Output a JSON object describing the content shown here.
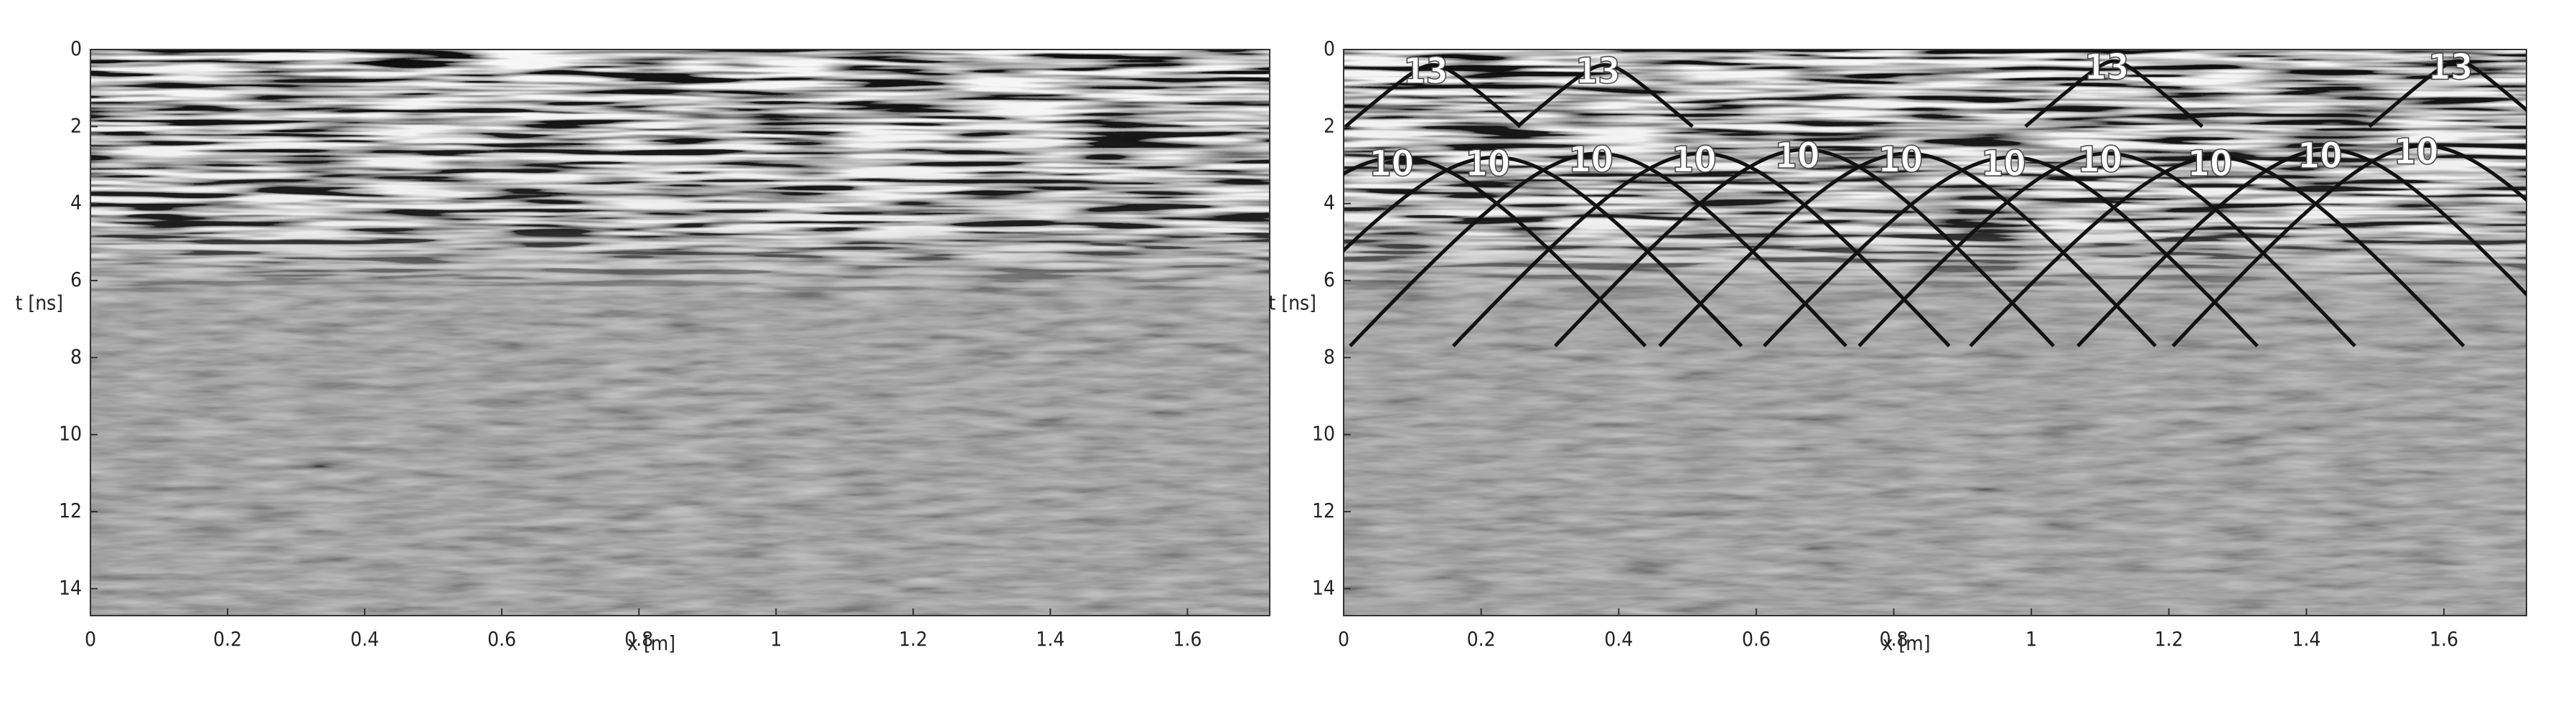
{
  "chart_data": [
    {
      "type": "radargram",
      "xlabel": "x [m]",
      "ylabel": "t [ns]",
      "xlim": [
        0,
        1.72
      ],
      "xticks": [
        0,
        0.2,
        0.4,
        0.6,
        0.8,
        1,
        1.2,
        1.4,
        1.6
      ],
      "ylim": [
        0,
        14.7
      ],
      "yticks": [
        0,
        2,
        4,
        6,
        8,
        10,
        12,
        14
      ],
      "invert_y": true
    },
    {
      "type": "radargram",
      "xlabel": "x [m]",
      "ylabel": "t [ns]",
      "xlim": [
        0,
        1.72
      ],
      "xticks": [
        0,
        0.2,
        0.4,
        0.6,
        0.8,
        1,
        1.2,
        1.4,
        1.6
      ],
      "ylim": [
        0,
        14.7
      ],
      "yticks": [
        0,
        2,
        4,
        6,
        8,
        10,
        12,
        14
      ],
      "invert_y": true,
      "hyperbolas": [
        {
          "x0": 0.13,
          "t0": 0.4,
          "velocity": 13,
          "t_end": 2.0
        },
        {
          "x0": 0.38,
          "t0": 0.4,
          "velocity": 13,
          "t_end": 2.0
        },
        {
          "x0": 1.12,
          "t0": 0.3,
          "velocity": 13,
          "t_end": 2.0
        },
        {
          "x0": 1.62,
          "t0": 0.3,
          "velocity": 13,
          "t_end": 2.0
        },
        {
          "x0": 0.08,
          "t0": 2.8,
          "velocity": 10,
          "t_end": 7.7
        },
        {
          "x0": 0.22,
          "t0": 2.8,
          "velocity": 10,
          "t_end": 7.7
        },
        {
          "x0": 0.37,
          "t0": 2.7,
          "velocity": 10,
          "t_end": 7.7
        },
        {
          "x0": 0.52,
          "t0": 2.7,
          "velocity": 10,
          "t_end": 7.7
        },
        {
          "x0": 0.67,
          "t0": 2.6,
          "velocity": 10,
          "t_end": 7.7
        },
        {
          "x0": 0.82,
          "t0": 2.7,
          "velocity": 10,
          "t_end": 7.7
        },
        {
          "x0": 0.97,
          "t0": 2.8,
          "velocity": 10,
          "t_end": 7.7
        },
        {
          "x0": 1.11,
          "t0": 2.7,
          "velocity": 10,
          "t_end": 7.7
        },
        {
          "x0": 1.27,
          "t0": 2.8,
          "velocity": 10,
          "t_end": 7.7
        },
        {
          "x0": 1.43,
          "t0": 2.6,
          "velocity": 10,
          "t_end": 7.7
        },
        {
          "x0": 1.57,
          "t0": 2.5,
          "velocity": 10,
          "t_end": 7.7
        }
      ]
    }
  ]
}
